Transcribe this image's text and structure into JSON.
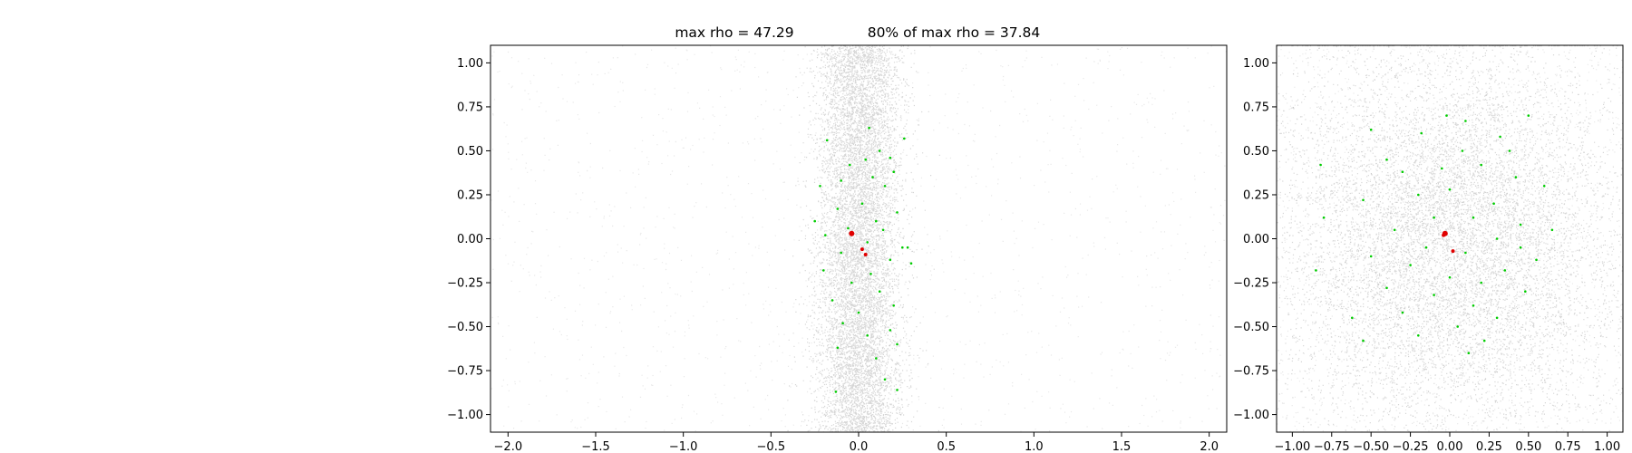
{
  "title": {
    "left": "max rho = 47.29",
    "right": "80% of max rho = 37.84"
  },
  "chart_data": [
    {
      "type": "scatter",
      "panel": "left",
      "title": "max rho = 47.29          80% of max rho = 37.84",
      "xlim": [
        -2.1,
        2.1
      ],
      "ylim": [
        -1.1,
        1.1
      ],
      "xticks": [
        -2.0,
        -1.5,
        -1.0,
        -0.5,
        0.0,
        0.5,
        1.0,
        1.5,
        2.0
      ],
      "xtick_labels": [
        "−2.0",
        "−1.5",
        "−1.0",
        "−0.5",
        "0.0",
        "0.5",
        "1.0",
        "1.5",
        "2.0"
      ],
      "yticks": [
        1.0,
        0.75,
        0.5,
        0.25,
        0.0,
        -0.25,
        -0.5,
        -0.75,
        -1.0
      ],
      "ytick_labels": [
        "1.00",
        "0.75",
        "0.50",
        "0.25",
        "0.00",
        "−0.25",
        "−0.50",
        "−0.75",
        "−1.00"
      ],
      "background_cloud": {
        "color": "#000000",
        "x_center": 0.0,
        "x_spread": 0.12,
        "y_range": [
          -1.1,
          1.1
        ]
      },
      "series": [
        {
          "color": "#00cc00",
          "points": [
            [
              -0.18,
              0.56
            ],
            [
              0.06,
              0.63
            ],
            [
              0.12,
              0.5
            ],
            [
              0.18,
              0.46
            ],
            [
              0.26,
              0.57
            ],
            [
              -0.05,
              0.42
            ],
            [
              0.08,
              0.35
            ],
            [
              -0.1,
              0.33
            ],
            [
              0.15,
              0.3
            ],
            [
              -0.22,
              0.3
            ],
            [
              0.02,
              0.2
            ],
            [
              -0.12,
              0.17
            ],
            [
              0.22,
              0.15
            ],
            [
              0.1,
              0.1
            ],
            [
              -0.06,
              0.06
            ],
            [
              0.14,
              0.05
            ],
            [
              -0.19,
              0.02
            ],
            [
              0.05,
              -0.02
            ],
            [
              0.25,
              -0.05
            ],
            [
              -0.1,
              -0.08
            ],
            [
              0.18,
              -0.12
            ],
            [
              0.3,
              -0.14
            ],
            [
              -0.2,
              -0.18
            ],
            [
              0.07,
              -0.2
            ],
            [
              -0.04,
              -0.25
            ],
            [
              0.12,
              -0.3
            ],
            [
              -0.15,
              -0.35
            ],
            [
              0.2,
              -0.38
            ],
            [
              0.0,
              -0.42
            ],
            [
              -0.09,
              -0.48
            ],
            [
              0.18,
              -0.52
            ],
            [
              0.05,
              -0.55
            ],
            [
              0.22,
              -0.6
            ],
            [
              -0.12,
              -0.62
            ],
            [
              0.1,
              -0.68
            ],
            [
              0.15,
              -0.8
            ],
            [
              -0.13,
              -0.87
            ],
            [
              0.22,
              -0.86
            ],
            [
              0.28,
              -0.05
            ],
            [
              -0.25,
              0.1
            ],
            [
              0.04,
              0.45
            ],
            [
              0.2,
              0.38
            ]
          ]
        },
        {
          "color": "#e00000",
          "points": [
            [
              -0.04,
              0.03
            ],
            [
              0.02,
              -0.06
            ],
            [
              0.04,
              -0.09
            ]
          ]
        }
      ]
    },
    {
      "type": "scatter",
      "panel": "right",
      "xlim": [
        -1.1,
        1.1
      ],
      "ylim": [
        -1.1,
        1.1
      ],
      "xticks": [
        -1.0,
        -0.75,
        -0.5,
        -0.25,
        0.0,
        0.25,
        0.5,
        0.75,
        1.0
      ],
      "xtick_labels": [
        "−1.00",
        "−0.75",
        "−0.50",
        "−0.25",
        "0.00",
        "0.25",
        "0.50",
        "0.75",
        "1.00"
      ],
      "yticks": [
        1.0,
        0.75,
        0.5,
        0.25,
        0.0,
        -0.25,
        -0.5,
        -0.75,
        -1.0
      ],
      "ytick_labels": [
        "1.00",
        "0.75",
        "0.50",
        "0.25",
        "0.00",
        "−0.25",
        "−0.50",
        "−0.75",
        "−1.00"
      ],
      "background_cloud": {
        "color": "#000000",
        "x_center": 0.0,
        "x_spread": 0.55,
        "y_range": [
          -1.1,
          1.1
        ]
      },
      "series": [
        {
          "color": "#00cc00",
          "points": [
            [
              -0.02,
              0.7
            ],
            [
              0.1,
              0.67
            ],
            [
              -0.18,
              0.6
            ],
            [
              0.32,
              0.58
            ],
            [
              -0.5,
              0.62
            ],
            [
              0.5,
              0.7
            ],
            [
              -0.4,
              0.45
            ],
            [
              0.08,
              0.5
            ],
            [
              0.2,
              0.42
            ],
            [
              -0.3,
              0.38
            ],
            [
              0.42,
              0.35
            ],
            [
              -0.82,
              0.42
            ],
            [
              0.6,
              0.3
            ],
            [
              -0.2,
              0.25
            ],
            [
              0.0,
              0.28
            ],
            [
              -0.55,
              0.22
            ],
            [
              0.28,
              0.2
            ],
            [
              0.15,
              0.12
            ],
            [
              -0.1,
              0.12
            ],
            [
              -0.8,
              0.12
            ],
            [
              0.45,
              0.08
            ],
            [
              0.65,
              0.05
            ],
            [
              -0.35,
              0.05
            ],
            [
              0.3,
              0.0
            ],
            [
              -0.15,
              -0.05
            ],
            [
              0.1,
              -0.08
            ],
            [
              -0.5,
              -0.1
            ],
            [
              0.55,
              -0.12
            ],
            [
              -0.25,
              -0.15
            ],
            [
              0.35,
              -0.18
            ],
            [
              -0.85,
              -0.18
            ],
            [
              0.0,
              -0.22
            ],
            [
              0.2,
              -0.25
            ],
            [
              -0.4,
              -0.28
            ],
            [
              0.48,
              -0.3
            ],
            [
              -0.1,
              -0.32
            ],
            [
              0.15,
              -0.38
            ],
            [
              -0.3,
              -0.42
            ],
            [
              0.3,
              -0.45
            ],
            [
              -0.62,
              -0.45
            ],
            [
              0.05,
              -0.5
            ],
            [
              -0.2,
              -0.55
            ],
            [
              0.22,
              -0.58
            ],
            [
              -0.55,
              -0.58
            ],
            [
              0.12,
              -0.65
            ],
            [
              0.45,
              -0.05
            ],
            [
              -0.05,
              0.4
            ],
            [
              0.38,
              0.5
            ]
          ]
        },
        {
          "color": "#e00000",
          "points": [
            [
              -0.03,
              0.03
            ],
            [
              -0.04,
              0.02
            ],
            [
              0.02,
              -0.07
            ]
          ]
        }
      ]
    }
  ]
}
